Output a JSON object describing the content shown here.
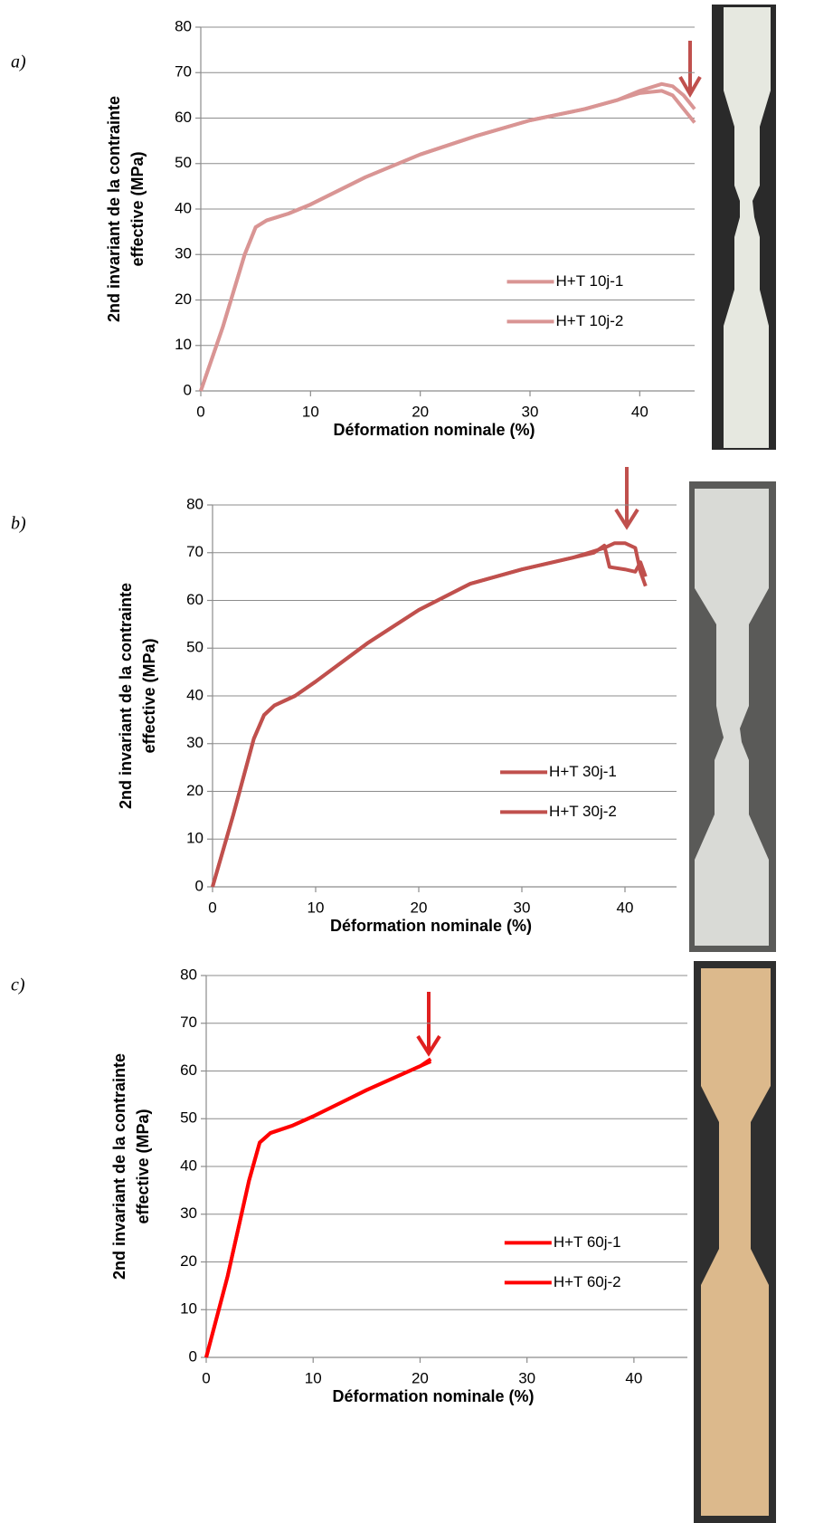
{
  "chart_data": [
    {
      "type": "line",
      "label": "a)",
      "ylabel": [
        "2nd invariant de la contrainte",
        "effective (MPa)"
      ],
      "xlabel": "Déformation nominale (%)",
      "xlim": [
        0,
        45
      ],
      "xticks": [
        0,
        10,
        20,
        30,
        40
      ],
      "ylim": [
        0,
        80
      ],
      "yticks": [
        0,
        10,
        20,
        30,
        40,
        50,
        60,
        70,
        80
      ],
      "grid": true,
      "legend": "center right",
      "series": [
        {
          "name": "H+T 10j-1",
          "color": "#d99594",
          "x": [
            0,
            2,
            4,
            5,
            6,
            8,
            10,
            15,
            20,
            25,
            30,
            35,
            38,
            40,
            42,
            43,
            44,
            45
          ],
          "values": [
            0,
            14,
            30,
            36,
            37.5,
            39,
            41,
            47,
            52,
            56,
            59.5,
            62,
            64,
            66,
            67.5,
            67,
            65,
            62
          ]
        },
        {
          "name": "H+T 10j-2",
          "color": "#d99594",
          "x": [
            0,
            2,
            4,
            5,
            6,
            8,
            10,
            15,
            20,
            25,
            30,
            35,
            38,
            40,
            42,
            43,
            44,
            45
          ],
          "values": [
            0,
            14,
            30,
            36,
            37.5,
            39,
            41,
            47,
            52,
            56,
            59.5,
            62,
            64,
            65.5,
            66,
            65,
            62,
            59
          ]
        }
      ]
    },
    {
      "type": "line",
      "label": "b)",
      "ylabel": [
        "2nd invariant de la contrainte",
        "effective (MPa)"
      ],
      "xlabel": "Déformation nominale (%)",
      "xlim": [
        0,
        45
      ],
      "xticks": [
        0,
        10,
        20,
        30,
        40
      ],
      "ylim": [
        0,
        80
      ],
      "yticks": [
        0,
        10,
        20,
        30,
        40,
        50,
        60,
        70,
        80
      ],
      "grid": true,
      "legend": "center right",
      "series": [
        {
          "name": "H+T 30j-1",
          "color": "#c0504d",
          "x": [
            0,
            2,
            4,
            5,
            6,
            8,
            10,
            15,
            20,
            25,
            30,
            35,
            38,
            39,
            40,
            41,
            41.5,
            42
          ],
          "values": [
            0,
            15,
            31,
            36,
            38,
            40,
            43,
            51,
            58,
            63.5,
            66.5,
            69,
            71,
            72,
            72,
            71,
            66,
            63
          ]
        },
        {
          "name": "H+T 30j-2",
          "color": "#c0504d",
          "x": [
            0,
            2,
            4,
            5,
            6,
            8,
            10,
            15,
            20,
            25,
            30,
            35,
            37,
            38,
            38.5,
            40,
            41,
            41.5,
            42
          ],
          "values": [
            0,
            15,
            31,
            36,
            38,
            40,
            43,
            51,
            58,
            63.5,
            66.5,
            69,
            70,
            71.5,
            67,
            66.5,
            66,
            68,
            65
          ]
        }
      ]
    },
    {
      "type": "line",
      "label": "c)",
      "ylabel": [
        "2nd invariant de la contrainte",
        "effective (MPa)"
      ],
      "xlabel": "Déformation nominale (%)",
      "xlim": [
        0,
        45
      ],
      "xticks": [
        0,
        10,
        20,
        30,
        40
      ],
      "ylim": [
        0,
        80
      ],
      "yticks": [
        0,
        10,
        20,
        30,
        40,
        50,
        60,
        70,
        80
      ],
      "grid": true,
      "legend": "center right",
      "series": [
        {
          "name": "H+T 60j-1",
          "color": "#ff0000",
          "x": [
            0,
            2,
            4,
            5,
            6,
            8,
            10,
            15,
            20,
            21
          ],
          "values": [
            0,
            17,
            37,
            45,
            47,
            48.5,
            50.5,
            56,
            61,
            62
          ]
        },
        {
          "name": "H+T 60j-2",
          "color": "#ff0000",
          "x": [
            0,
            2,
            4,
            5,
            6,
            8,
            10,
            15,
            20,
            21
          ],
          "values": [
            0,
            17,
            37,
            45,
            47,
            48.5,
            50.5,
            56,
            61,
            62.5
          ]
        }
      ]
    }
  ]
}
